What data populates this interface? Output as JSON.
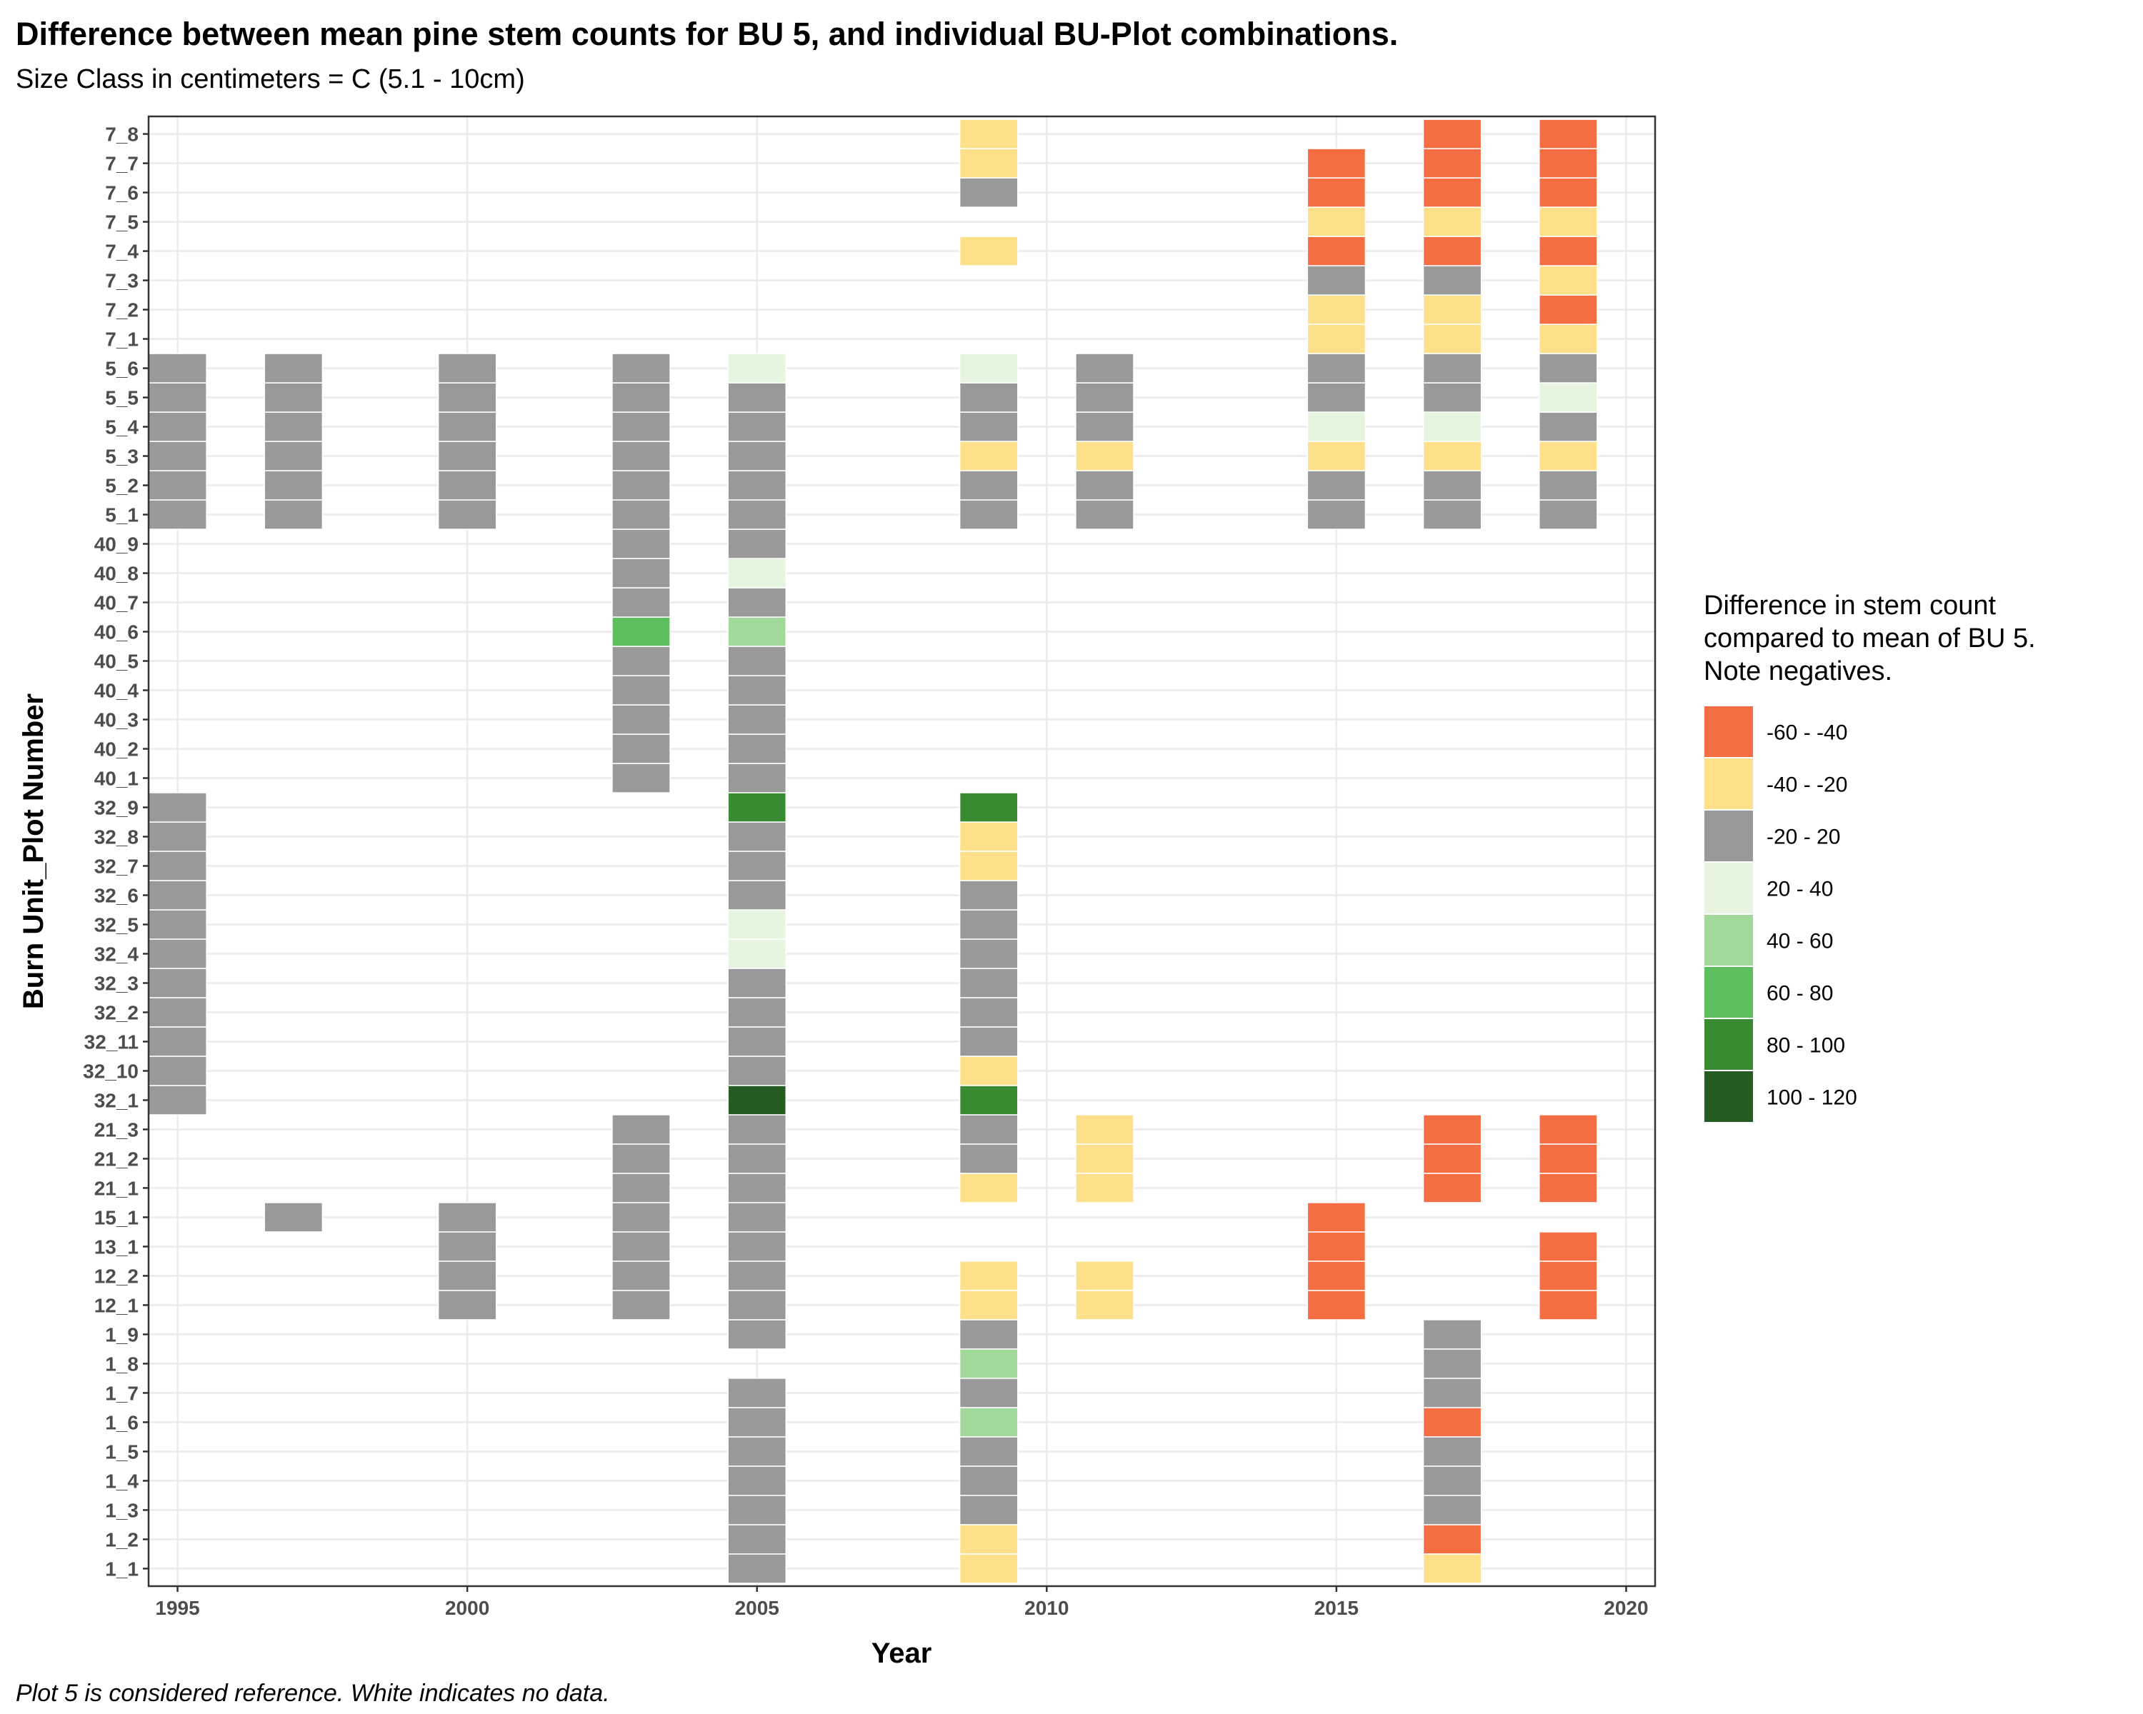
{
  "chart_data": {
    "type": "heatmap",
    "title": "Difference between mean pine stem counts for BU 5, and individual BU-Plot combinations.",
    "subtitle": "Size Class in centimeters = C (5.1 - 10cm)",
    "caption": "Plot 5 is considered reference.  White indicates no data.",
    "xlabel": "Year",
    "ylabel": "Burn Unit_Plot Number",
    "xlim": [
      1994.5,
      2020.5
    ],
    "x_ticks": [
      1995,
      2000,
      2005,
      2010,
      2015,
      2020
    ],
    "y_categories": [
      "1_1",
      "1_2",
      "1_3",
      "1_4",
      "1_5",
      "1_6",
      "1_7",
      "1_8",
      "1_9",
      "12_1",
      "12_2",
      "13_1",
      "15_1",
      "21_1",
      "21_2",
      "21_3",
      "32_1",
      "32_10",
      "32_11",
      "32_2",
      "32_3",
      "32_4",
      "32_5",
      "32_6",
      "32_7",
      "32_8",
      "32_9",
      "40_1",
      "40_2",
      "40_3",
      "40_4",
      "40_5",
      "40_6",
      "40_7",
      "40_8",
      "40_9",
      "5_1",
      "5_2",
      "5_3",
      "5_4",
      "5_5",
      "5_6",
      "7_1",
      "7_2",
      "7_3",
      "7_4",
      "7_5",
      "7_6",
      "7_7",
      "7_8"
    ],
    "legend": {
      "title": [
        "Difference in stem count",
        "compared to mean of BU 5.",
        "Note negatives."
      ],
      "position": "right",
      "bins": [
        {
          "label": "-60 - -40",
          "color": "#F46D43"
        },
        {
          "label": "-40 - -20",
          "color": "#FEE08B"
        },
        {
          "label": "-20 - 20",
          "color": "#999999"
        },
        {
          "label": "20 - 40",
          "color": "#E5F5E0"
        },
        {
          "label": "40 - 60",
          "color": "#A1D99B"
        },
        {
          "label": "60 - 80",
          "color": "#5DBE5D"
        },
        {
          "label": "80 - 100",
          "color": "#3A8A32"
        },
        {
          "label": "100 - 120",
          "color": "#245C22"
        }
      ]
    },
    "grid": true,
    "bin_index_key": "cells values are [year, plot, bin index into legend.bins]",
    "cells": [
      [
        1995,
        "32_1",
        2
      ],
      [
        1995,
        "32_10",
        2
      ],
      [
        1995,
        "32_11",
        2
      ],
      [
        1995,
        "32_2",
        2
      ],
      [
        1995,
        "32_3",
        2
      ],
      [
        1995,
        "32_4",
        2
      ],
      [
        1995,
        "32_5",
        2
      ],
      [
        1995,
        "32_6",
        2
      ],
      [
        1995,
        "32_7",
        2
      ],
      [
        1995,
        "32_8",
        2
      ],
      [
        1995,
        "32_9",
        2
      ],
      [
        1995,
        "5_1",
        2
      ],
      [
        1995,
        "5_2",
        2
      ],
      [
        1995,
        "5_3",
        2
      ],
      [
        1995,
        "5_4",
        2
      ],
      [
        1995,
        "5_5",
        2
      ],
      [
        1995,
        "5_6",
        2
      ],
      [
        1997,
        "15_1",
        2
      ],
      [
        1997,
        "5_1",
        2
      ],
      [
        1997,
        "5_2",
        2
      ],
      [
        1997,
        "5_3",
        2
      ],
      [
        1997,
        "5_4",
        2
      ],
      [
        1997,
        "5_5",
        2
      ],
      [
        1997,
        "5_6",
        2
      ],
      [
        2000,
        "12_1",
        2
      ],
      [
        2000,
        "12_2",
        2
      ],
      [
        2000,
        "13_1",
        2
      ],
      [
        2000,
        "15_1",
        2
      ],
      [
        2000,
        "5_1",
        2
      ],
      [
        2000,
        "5_2",
        2
      ],
      [
        2000,
        "5_3",
        2
      ],
      [
        2000,
        "5_4",
        2
      ],
      [
        2000,
        "5_5",
        2
      ],
      [
        2000,
        "5_6",
        2
      ],
      [
        2003,
        "12_1",
        2
      ],
      [
        2003,
        "12_2",
        2
      ],
      [
        2003,
        "13_1",
        2
      ],
      [
        2003,
        "15_1",
        2
      ],
      [
        2003,
        "21_1",
        2
      ],
      [
        2003,
        "21_2",
        2
      ],
      [
        2003,
        "21_3",
        2
      ],
      [
        2003,
        "40_1",
        2
      ],
      [
        2003,
        "40_2",
        2
      ],
      [
        2003,
        "40_3",
        2
      ],
      [
        2003,
        "40_4",
        2
      ],
      [
        2003,
        "40_5",
        2
      ],
      [
        2003,
        "40_6",
        5
      ],
      [
        2003,
        "40_7",
        2
      ],
      [
        2003,
        "40_8",
        2
      ],
      [
        2003,
        "40_9",
        2
      ],
      [
        2003,
        "5_1",
        2
      ],
      [
        2003,
        "5_2",
        2
      ],
      [
        2003,
        "5_3",
        2
      ],
      [
        2003,
        "5_4",
        2
      ],
      [
        2003,
        "5_5",
        2
      ],
      [
        2003,
        "5_6",
        2
      ],
      [
        2005,
        "1_1",
        2
      ],
      [
        2005,
        "1_2",
        2
      ],
      [
        2005,
        "1_3",
        2
      ],
      [
        2005,
        "1_4",
        2
      ],
      [
        2005,
        "1_5",
        2
      ],
      [
        2005,
        "1_6",
        2
      ],
      [
        2005,
        "1_7",
        2
      ],
      [
        2005,
        "1_9",
        2
      ],
      [
        2005,
        "12_1",
        2
      ],
      [
        2005,
        "12_2",
        2
      ],
      [
        2005,
        "13_1",
        2
      ],
      [
        2005,
        "15_1",
        2
      ],
      [
        2005,
        "21_1",
        2
      ],
      [
        2005,
        "21_2",
        2
      ],
      [
        2005,
        "21_3",
        2
      ],
      [
        2005,
        "32_1",
        7
      ],
      [
        2005,
        "32_10",
        2
      ],
      [
        2005,
        "32_11",
        2
      ],
      [
        2005,
        "32_2",
        2
      ],
      [
        2005,
        "32_3",
        2
      ],
      [
        2005,
        "32_4",
        3
      ],
      [
        2005,
        "32_5",
        3
      ],
      [
        2005,
        "32_6",
        2
      ],
      [
        2005,
        "32_7",
        2
      ],
      [
        2005,
        "32_8",
        2
      ],
      [
        2005,
        "32_9",
        6
      ],
      [
        2005,
        "40_1",
        2
      ],
      [
        2005,
        "40_2",
        2
      ],
      [
        2005,
        "40_3",
        2
      ],
      [
        2005,
        "40_4",
        2
      ],
      [
        2005,
        "40_5",
        2
      ],
      [
        2005,
        "40_6",
        4
      ],
      [
        2005,
        "40_7",
        2
      ],
      [
        2005,
        "40_8",
        3
      ],
      [
        2005,
        "40_9",
        2
      ],
      [
        2005,
        "5_1",
        2
      ],
      [
        2005,
        "5_2",
        2
      ],
      [
        2005,
        "5_3",
        2
      ],
      [
        2005,
        "5_4",
        2
      ],
      [
        2005,
        "5_5",
        2
      ],
      [
        2005,
        "5_6",
        3
      ],
      [
        2009,
        "1_1",
        1
      ],
      [
        2009,
        "1_2",
        1
      ],
      [
        2009,
        "1_3",
        2
      ],
      [
        2009,
        "1_4",
        2
      ],
      [
        2009,
        "1_5",
        2
      ],
      [
        2009,
        "1_6",
        4
      ],
      [
        2009,
        "1_7",
        2
      ],
      [
        2009,
        "1_8",
        4
      ],
      [
        2009,
        "1_9",
        2
      ],
      [
        2009,
        "12_1",
        1
      ],
      [
        2009,
        "12_2",
        1
      ],
      [
        2009,
        "21_1",
        1
      ],
      [
        2009,
        "21_2",
        2
      ],
      [
        2009,
        "21_3",
        2
      ],
      [
        2009,
        "32_1",
        6
      ],
      [
        2009,
        "32_10",
        1
      ],
      [
        2009,
        "32_11",
        2
      ],
      [
        2009,
        "32_2",
        2
      ],
      [
        2009,
        "32_3",
        2
      ],
      [
        2009,
        "32_4",
        2
      ],
      [
        2009,
        "32_5",
        2
      ],
      [
        2009,
        "32_6",
        2
      ],
      [
        2009,
        "32_7",
        1
      ],
      [
        2009,
        "32_8",
        1
      ],
      [
        2009,
        "32_9",
        6
      ],
      [
        2009,
        "5_1",
        2
      ],
      [
        2009,
        "5_2",
        2
      ],
      [
        2009,
        "5_3",
        1
      ],
      [
        2009,
        "5_4",
        2
      ],
      [
        2009,
        "5_5",
        2
      ],
      [
        2009,
        "5_6",
        3
      ],
      [
        2009,
        "7_4",
        1
      ],
      [
        2009,
        "7_6",
        2
      ],
      [
        2009,
        "7_7",
        1
      ],
      [
        2009,
        "7_8",
        1
      ],
      [
        2011,
        "12_1",
        1
      ],
      [
        2011,
        "12_2",
        1
      ],
      [
        2011,
        "21_1",
        1
      ],
      [
        2011,
        "21_2",
        1
      ],
      [
        2011,
        "21_3",
        1
      ],
      [
        2011,
        "5_1",
        2
      ],
      [
        2011,
        "5_2",
        2
      ],
      [
        2011,
        "5_3",
        1
      ],
      [
        2011,
        "5_4",
        2
      ],
      [
        2011,
        "5_5",
        2
      ],
      [
        2011,
        "5_6",
        2
      ],
      [
        2015,
        "12_1",
        0
      ],
      [
        2015,
        "12_2",
        0
      ],
      [
        2015,
        "13_1",
        0
      ],
      [
        2015,
        "15_1",
        0
      ],
      [
        2015,
        "5_1",
        2
      ],
      [
        2015,
        "5_2",
        2
      ],
      [
        2015,
        "5_3",
        1
      ],
      [
        2015,
        "5_4",
        3
      ],
      [
        2015,
        "5_5",
        2
      ],
      [
        2015,
        "5_6",
        2
      ],
      [
        2015,
        "7_1",
        1
      ],
      [
        2015,
        "7_2",
        1
      ],
      [
        2015,
        "7_3",
        2
      ],
      [
        2015,
        "7_4",
        0
      ],
      [
        2015,
        "7_5",
        1
      ],
      [
        2015,
        "7_6",
        0
      ],
      [
        2015,
        "7_7",
        0
      ],
      [
        2017,
        "1_1",
        1
      ],
      [
        2017,
        "1_2",
        0
      ],
      [
        2017,
        "1_3",
        2
      ],
      [
        2017,
        "1_4",
        2
      ],
      [
        2017,
        "1_5",
        2
      ],
      [
        2017,
        "1_6",
        0
      ],
      [
        2017,
        "1_7",
        2
      ],
      [
        2017,
        "1_8",
        2
      ],
      [
        2017,
        "1_9",
        2
      ],
      [
        2017,
        "21_1",
        0
      ],
      [
        2017,
        "21_2",
        0
      ],
      [
        2017,
        "21_3",
        0
      ],
      [
        2017,
        "5_1",
        2
      ],
      [
        2017,
        "5_2",
        2
      ],
      [
        2017,
        "5_3",
        1
      ],
      [
        2017,
        "5_4",
        3
      ],
      [
        2017,
        "5_5",
        2
      ],
      [
        2017,
        "5_6",
        2
      ],
      [
        2017,
        "7_1",
        1
      ],
      [
        2017,
        "7_2",
        1
      ],
      [
        2017,
        "7_3",
        2
      ],
      [
        2017,
        "7_4",
        0
      ],
      [
        2017,
        "7_5",
        1
      ],
      [
        2017,
        "7_6",
        0
      ],
      [
        2017,
        "7_7",
        0
      ],
      [
        2017,
        "7_8",
        0
      ],
      [
        2019,
        "12_1",
        0
      ],
      [
        2019,
        "12_2",
        0
      ],
      [
        2019,
        "13_1",
        0
      ],
      [
        2019,
        "21_1",
        0
      ],
      [
        2019,
        "21_2",
        0
      ],
      [
        2019,
        "21_3",
        0
      ],
      [
        2019,
        "5_1",
        2
      ],
      [
        2019,
        "5_2",
        2
      ],
      [
        2019,
        "5_3",
        1
      ],
      [
        2019,
        "5_4",
        2
      ],
      [
        2019,
        "5_5",
        3
      ],
      [
        2019,
        "5_6",
        2
      ],
      [
        2019,
        "7_1",
        1
      ],
      [
        2019,
        "7_2",
        0
      ],
      [
        2019,
        "7_3",
        1
      ],
      [
        2019,
        "7_4",
        0
      ],
      [
        2019,
        "7_5",
        1
      ],
      [
        2019,
        "7_6",
        0
      ],
      [
        2019,
        "7_7",
        0
      ],
      [
        2019,
        "7_8",
        0
      ]
    ]
  }
}
